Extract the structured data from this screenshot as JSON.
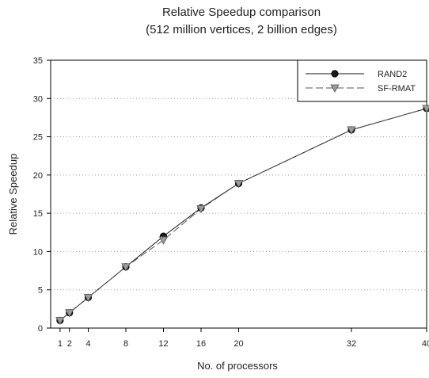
{
  "chart_data": {
    "type": "line",
    "title": "Relative Speedup comparison",
    "subtitle": "(512 million vertices, 2 billion edges)",
    "xlabel": "No. of processors",
    "ylabel": "Relative Speedup",
    "xlim": [
      0,
      40
    ],
    "ylim": [
      0,
      35
    ],
    "xticks": [
      1,
      2,
      4,
      8,
      12,
      16,
      20,
      32,
      40
    ],
    "yticks": [
      0,
      5,
      10,
      15,
      20,
      25,
      30,
      35
    ],
    "grid": "horizontal dotted",
    "legend_position": "top-right",
    "series": [
      {
        "name": "RAND2",
        "x": [
          1,
          2,
          4,
          8,
          12,
          16,
          20,
          32,
          40
        ],
        "y": [
          1.0,
          2.0,
          4.0,
          8.0,
          12.0,
          15.7,
          18.9,
          25.9,
          28.7
        ],
        "marker": "circle",
        "line_style": "solid",
        "color": "#111111"
      },
      {
        "name": "SF-RMAT",
        "x": [
          1,
          2,
          4,
          8,
          12,
          16,
          20,
          32,
          40
        ],
        "y": [
          1.0,
          2.0,
          4.0,
          8.0,
          11.5,
          15.6,
          18.9,
          25.9,
          28.7
        ],
        "marker": "triangle-down",
        "line_style": "dashed",
        "color": "#888888"
      }
    ]
  }
}
